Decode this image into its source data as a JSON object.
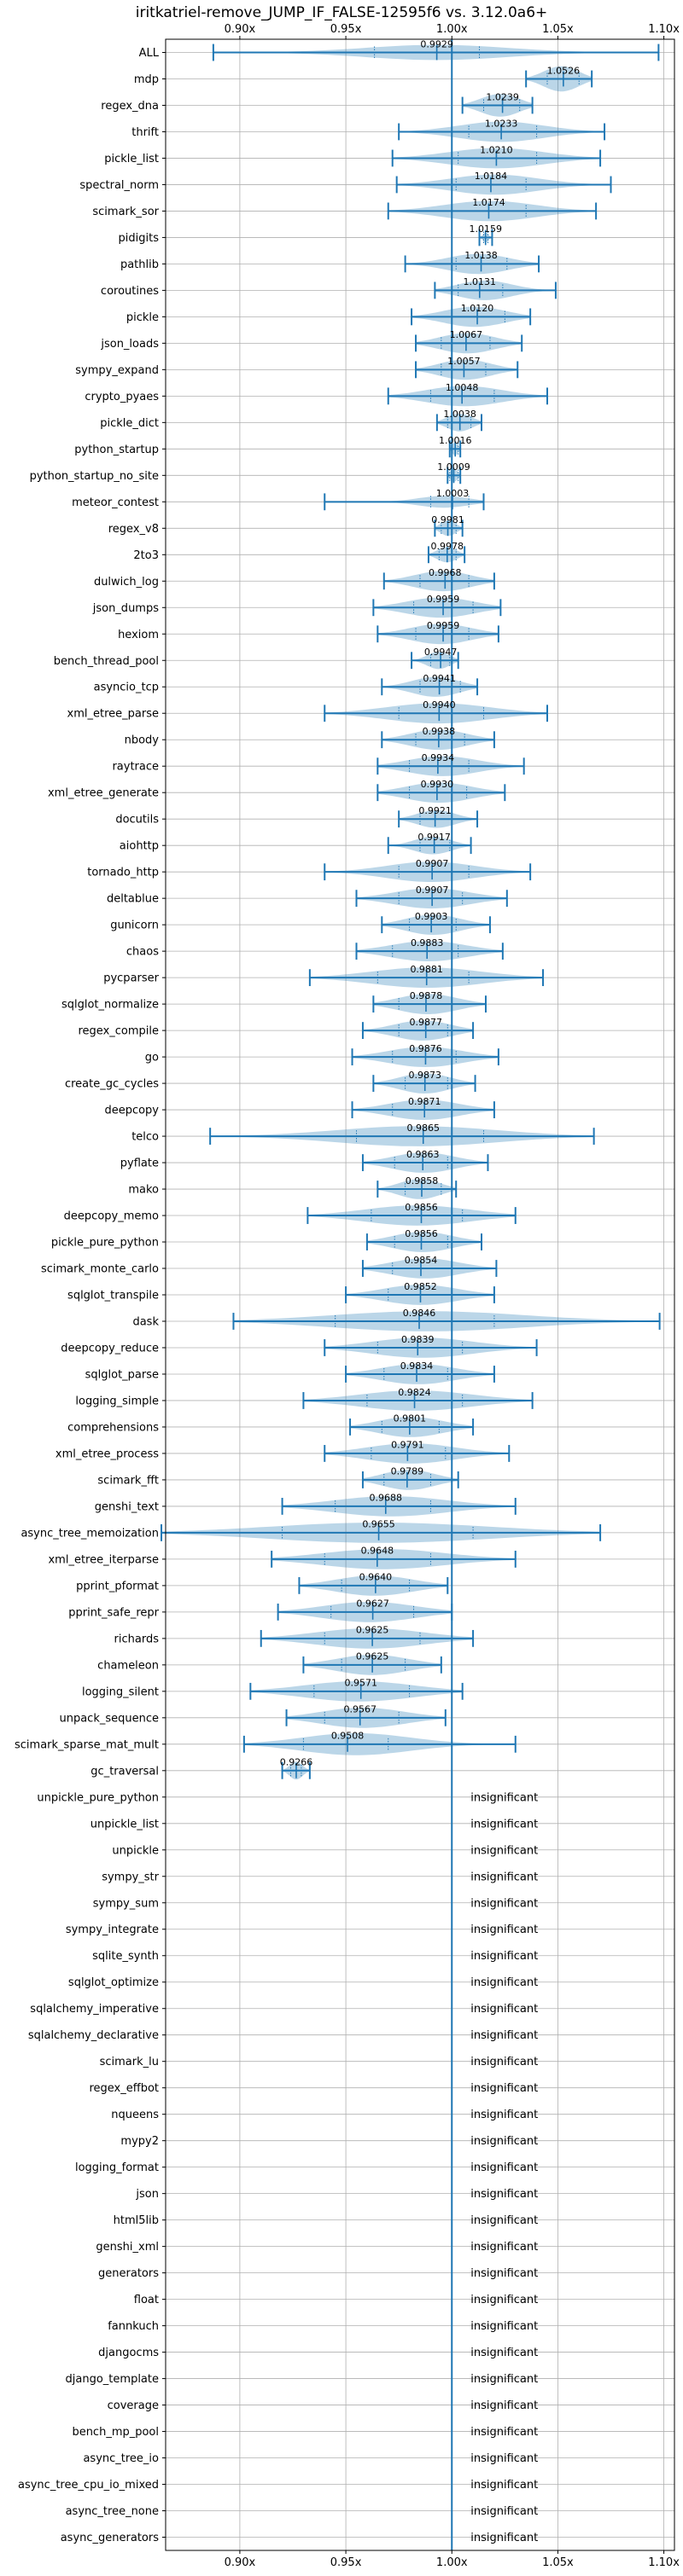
{
  "chart_data": {
    "type": "violin",
    "title": "iritkatriel-remove_JUMP_IF_FALSE-12595f6 vs. 3.12.0a6+",
    "xlim": [
      0.865,
      1.105
    ],
    "xticks": [
      0.9,
      0.95,
      1.0,
      1.05,
      1.1
    ],
    "xtick_labels": [
      "0.90x",
      "0.95x",
      "1.00x",
      "1.05x",
      "1.10x"
    ],
    "reference_line": 1.0,
    "grid": true,
    "colors": {
      "line": "#1f77b4",
      "violin_fill": "#1f77b4",
      "grid": "#b0b0b0",
      "text": "#000000"
    },
    "insignificant_label": "insignificant",
    "benchmarks": [
      {
        "name": "ALL",
        "mean": 0.9929,
        "min": 0.8875,
        "max": 1.0975,
        "q1": 0.9635,
        "q3": 1.013,
        "width": 0.6
      },
      {
        "name": "mdp",
        "mean": 1.0526,
        "min": 1.035,
        "max": 1.066,
        "q1": 1.045,
        "q3": 1.06,
        "width": 1.0
      },
      {
        "name": "regex_dna",
        "mean": 1.0239,
        "min": 1.005,
        "max": 1.038,
        "q1": 1.015,
        "q3": 1.032,
        "width": 0.9
      },
      {
        "name": "thrift",
        "mean": 1.0233,
        "min": 0.975,
        "max": 1.072,
        "q1": 1.008,
        "q3": 1.04,
        "width": 0.8
      },
      {
        "name": "pickle_list",
        "mean": 1.021,
        "min": 0.972,
        "max": 1.07,
        "q1": 1.003,
        "q3": 1.04,
        "width": 0.8
      },
      {
        "name": "spectral_norm",
        "mean": 1.0184,
        "min": 0.974,
        "max": 1.075,
        "q1": 1.002,
        "q3": 1.035,
        "width": 0.8
      },
      {
        "name": "scimark_sor",
        "mean": 1.0174,
        "min": 0.97,
        "max": 1.068,
        "q1": 1.0,
        "q3": 1.035,
        "width": 0.8
      },
      {
        "name": "pidigits",
        "mean": 1.0159,
        "min": 1.013,
        "max": 1.019,
        "q1": 1.015,
        "q3": 1.017,
        "width": 0.4
      },
      {
        "name": "pathlib",
        "mean": 1.0138,
        "min": 0.978,
        "max": 1.041,
        "q1": 1.002,
        "q3": 1.026,
        "width": 0.8
      },
      {
        "name": "coroutines",
        "mean": 1.0131,
        "min": 0.992,
        "max": 1.049,
        "q1": 1.003,
        "q3": 1.024,
        "width": 0.8
      },
      {
        "name": "pickle",
        "mean": 1.012,
        "min": 0.981,
        "max": 1.037,
        "q1": 1.0,
        "q3": 1.025,
        "width": 0.8
      },
      {
        "name": "json_loads",
        "mean": 1.0067,
        "min": 0.983,
        "max": 1.033,
        "q1": 0.995,
        "q3": 1.018,
        "width": 0.8
      },
      {
        "name": "sympy_expand",
        "mean": 1.0057,
        "min": 0.983,
        "max": 1.031,
        "q1": 0.995,
        "q3": 1.016,
        "width": 0.8
      },
      {
        "name": "crypto_pyaes",
        "mean": 1.0048,
        "min": 0.97,
        "max": 1.045,
        "q1": 0.99,
        "q3": 1.02,
        "width": 0.8
      },
      {
        "name": "pickle_dict",
        "mean": 1.0038,
        "min": 0.993,
        "max": 1.014,
        "q1": 0.998,
        "q3": 1.009,
        "width": 0.7
      },
      {
        "name": "python_startup",
        "mean": 1.0016,
        "min": 0.999,
        "max": 1.004,
        "q1": 1.0,
        "q3": 1.003,
        "width": 0.5
      },
      {
        "name": "python_startup_no_site",
        "mean": 1.0009,
        "min": 0.998,
        "max": 1.004,
        "q1": 0.999,
        "q3": 1.003,
        "width": 0.5
      },
      {
        "name": "meteor_contest",
        "mean": 1.0003,
        "min": 0.94,
        "max": 1.015,
        "q1": 0.99,
        "q3": 1.008,
        "width": 0.6
      },
      {
        "name": "regex_v8",
        "mean": 0.9981,
        "min": 0.992,
        "max": 1.005,
        "q1": 0.995,
        "q3": 1.002,
        "width": 0.6
      },
      {
        "name": "2to3",
        "mean": 0.9978,
        "min": 0.989,
        "max": 1.006,
        "q1": 0.994,
        "q3": 1.002,
        "width": 0.6
      },
      {
        "name": "dulwich_log",
        "mean": 0.9968,
        "min": 0.968,
        "max": 1.02,
        "q1": 0.985,
        "q3": 1.008,
        "width": 0.8
      },
      {
        "name": "json_dumps",
        "mean": 0.9959,
        "min": 0.963,
        "max": 1.023,
        "q1": 0.982,
        "q3": 1.01,
        "width": 0.8
      },
      {
        "name": "hexiom",
        "mean": 0.9959,
        "min": 0.965,
        "max": 1.022,
        "q1": 0.983,
        "q3": 1.008,
        "width": 0.8
      },
      {
        "name": "bench_thread_pool",
        "mean": 0.9947,
        "min": 0.981,
        "max": 1.003,
        "q1": 0.99,
        "q3": 0.999,
        "width": 0.7
      },
      {
        "name": "asyncio_tcp",
        "mean": 0.9941,
        "min": 0.967,
        "max": 1.012,
        "q1": 0.985,
        "q3": 1.004,
        "width": 0.8
      },
      {
        "name": "xml_etree_parse",
        "mean": 0.994,
        "min": 0.94,
        "max": 1.045,
        "q1": 0.975,
        "q3": 1.015,
        "width": 0.8
      },
      {
        "name": "nbody",
        "mean": 0.9938,
        "min": 0.967,
        "max": 1.02,
        "q1": 0.983,
        "q3": 1.006,
        "width": 0.8
      },
      {
        "name": "raytrace",
        "mean": 0.9934,
        "min": 0.965,
        "max": 1.034,
        "q1": 0.98,
        "q3": 1.008,
        "width": 0.8
      },
      {
        "name": "xml_etree_generate",
        "mean": 0.993,
        "min": 0.965,
        "max": 1.025,
        "q1": 0.98,
        "q3": 1.007,
        "width": 0.8
      },
      {
        "name": "docutils",
        "mean": 0.9921,
        "min": 0.975,
        "max": 1.012,
        "q1": 0.985,
        "q3": 1.0,
        "width": 0.7
      },
      {
        "name": "aiohttp",
        "mean": 0.9917,
        "min": 0.97,
        "max": 1.009,
        "q1": 0.985,
        "q3": 0.999,
        "width": 0.7
      },
      {
        "name": "tornado_http",
        "mean": 0.9907,
        "min": 0.94,
        "max": 1.037,
        "q1": 0.975,
        "q3": 1.008,
        "width": 0.8
      },
      {
        "name": "deltablue",
        "mean": 0.9907,
        "min": 0.955,
        "max": 1.026,
        "q1": 0.975,
        "q3": 1.005,
        "width": 0.8
      },
      {
        "name": "gunicorn",
        "mean": 0.9903,
        "min": 0.967,
        "max": 1.018,
        "q1": 0.98,
        "q3": 1.002,
        "width": 0.8
      },
      {
        "name": "chaos",
        "mean": 0.9883,
        "min": 0.955,
        "max": 1.024,
        "q1": 0.972,
        "q3": 1.003,
        "width": 0.8
      },
      {
        "name": "pycparser",
        "mean": 0.9881,
        "min": 0.933,
        "max": 1.043,
        "q1": 0.965,
        "q3": 1.008,
        "width": 0.8
      },
      {
        "name": "sqlglot_normalize",
        "mean": 0.9878,
        "min": 0.963,
        "max": 1.016,
        "q1": 0.975,
        "q3": 1.0,
        "width": 0.8
      },
      {
        "name": "regex_compile",
        "mean": 0.9877,
        "min": 0.958,
        "max": 1.01,
        "q1": 0.975,
        "q3": 0.998,
        "width": 0.8
      },
      {
        "name": "go",
        "mean": 0.9876,
        "min": 0.953,
        "max": 1.022,
        "q1": 0.972,
        "q3": 1.002,
        "width": 0.8
      },
      {
        "name": "create_gc_cycles",
        "mean": 0.9873,
        "min": 0.963,
        "max": 1.011,
        "q1": 0.978,
        "q3": 0.998,
        "width": 0.8
      },
      {
        "name": "deepcopy",
        "mean": 0.9871,
        "min": 0.953,
        "max": 1.02,
        "q1": 0.972,
        "q3": 1.0,
        "width": 0.8
      },
      {
        "name": "telco",
        "mean": 0.9865,
        "min": 0.886,
        "max": 1.067,
        "q1": 0.955,
        "q3": 1.015,
        "width": 0.8
      },
      {
        "name": "pyflate",
        "mean": 0.9863,
        "min": 0.958,
        "max": 1.017,
        "q1": 0.973,
        "q3": 0.998,
        "width": 0.8
      },
      {
        "name": "mako",
        "mean": 0.9858,
        "min": 0.965,
        "max": 1.002,
        "q1": 0.978,
        "q3": 0.995,
        "width": 0.8
      },
      {
        "name": "deepcopy_memo",
        "mean": 0.9856,
        "min": 0.932,
        "max": 1.03,
        "q1": 0.962,
        "q3": 1.005,
        "width": 0.8
      },
      {
        "name": "pickle_pure_python",
        "mean": 0.9856,
        "min": 0.96,
        "max": 1.014,
        "q1": 0.973,
        "q3": 0.998,
        "width": 0.8
      },
      {
        "name": "scimark_monte_carlo",
        "mean": 0.9854,
        "min": 0.958,
        "max": 1.021,
        "q1": 0.972,
        "q3": 1.0,
        "width": 0.8
      },
      {
        "name": "sqlglot_transpile",
        "mean": 0.9852,
        "min": 0.95,
        "max": 1.02,
        "q1": 0.97,
        "q3": 1.0,
        "width": 0.8
      },
      {
        "name": "dask",
        "mean": 0.9846,
        "min": 0.897,
        "max": 1.098,
        "q1": 0.945,
        "q3": 1.02,
        "width": 0.8
      },
      {
        "name": "deepcopy_reduce",
        "mean": 0.9839,
        "min": 0.94,
        "max": 1.04,
        "q1": 0.965,
        "q3": 1.005,
        "width": 0.8
      },
      {
        "name": "sqlglot_parse",
        "mean": 0.9834,
        "min": 0.95,
        "max": 1.02,
        "q1": 0.968,
        "q3": 0.998,
        "width": 0.8
      },
      {
        "name": "logging_simple",
        "mean": 0.9824,
        "min": 0.93,
        "max": 1.038,
        "q1": 0.96,
        "q3": 1.005,
        "width": 0.8
      },
      {
        "name": "comprehensions",
        "mean": 0.9801,
        "min": 0.952,
        "max": 1.01,
        "q1": 0.967,
        "q3": 0.994,
        "width": 0.8
      },
      {
        "name": "xml_etree_process",
        "mean": 0.9791,
        "min": 0.94,
        "max": 1.027,
        "q1": 0.962,
        "q3": 0.997,
        "width": 0.8
      },
      {
        "name": "scimark_fft",
        "mean": 0.9789,
        "min": 0.958,
        "max": 1.003,
        "q1": 0.968,
        "q3": 0.99,
        "width": 0.8
      },
      {
        "name": "genshi_text",
        "mean": 0.9688,
        "min": 0.92,
        "max": 1.03,
        "q1": 0.945,
        "q3": 0.99,
        "width": 0.8
      },
      {
        "name": "async_tree_memoization",
        "mean": 0.9655,
        "min": 0.863,
        "max": 1.07,
        "q1": 0.92,
        "q3": 1.01,
        "width": 0.8
      },
      {
        "name": "xml_etree_iterparse",
        "mean": 0.9648,
        "min": 0.915,
        "max": 1.03,
        "q1": 0.94,
        "q3": 0.99,
        "width": 0.8
      },
      {
        "name": "pprint_pformat",
        "mean": 0.964,
        "min": 0.928,
        "max": 0.998,
        "q1": 0.948,
        "q3": 0.98,
        "width": 0.8
      },
      {
        "name": "pprint_safe_repr",
        "mean": 0.9627,
        "min": 0.918,
        "max": 1.0,
        "q1": 0.943,
        "q3": 0.982,
        "width": 0.8
      },
      {
        "name": "richards",
        "mean": 0.9625,
        "min": 0.91,
        "max": 1.01,
        "q1": 0.94,
        "q3": 0.985,
        "width": 0.8
      },
      {
        "name": "chameleon",
        "mean": 0.9625,
        "min": 0.93,
        "max": 0.995,
        "q1": 0.948,
        "q3": 0.978,
        "width": 0.8
      },
      {
        "name": "logging_silent",
        "mean": 0.9571,
        "min": 0.905,
        "max": 1.005,
        "q1": 0.935,
        "q3": 0.98,
        "width": 0.8
      },
      {
        "name": "unpack_sequence",
        "mean": 0.9567,
        "min": 0.922,
        "max": 0.997,
        "q1": 0.94,
        "q3": 0.975,
        "width": 0.8
      },
      {
        "name": "scimark_sparse_mat_mult",
        "mean": 0.9508,
        "min": 0.902,
        "max": 1.03,
        "q1": 0.93,
        "q3": 0.97,
        "width": 0.9
      },
      {
        "name": "gc_traversal",
        "mean": 0.9266,
        "min": 0.92,
        "max": 0.933,
        "q1": 0.924,
        "q3": 0.929,
        "width": 0.7
      },
      {
        "name": "unpickle_pure_python",
        "insignificant": true
      },
      {
        "name": "unpickle_list",
        "insignificant": true
      },
      {
        "name": "unpickle",
        "insignificant": true
      },
      {
        "name": "sympy_str",
        "insignificant": true
      },
      {
        "name": "sympy_sum",
        "insignificant": true
      },
      {
        "name": "sympy_integrate",
        "insignificant": true
      },
      {
        "name": "sqlite_synth",
        "insignificant": true
      },
      {
        "name": "sqlglot_optimize",
        "insignificant": true
      },
      {
        "name": "sqlalchemy_imperative",
        "insignificant": true
      },
      {
        "name": "sqlalchemy_declarative",
        "insignificant": true
      },
      {
        "name": "scimark_lu",
        "insignificant": true
      },
      {
        "name": "regex_effbot",
        "insignificant": true
      },
      {
        "name": "nqueens",
        "insignificant": true
      },
      {
        "name": "mypy2",
        "insignificant": true
      },
      {
        "name": "logging_format",
        "insignificant": true
      },
      {
        "name": "json",
        "insignificant": true
      },
      {
        "name": "html5lib",
        "insignificant": true
      },
      {
        "name": "genshi_xml",
        "insignificant": true
      },
      {
        "name": "generators",
        "insignificant": true
      },
      {
        "name": "float",
        "insignificant": true
      },
      {
        "name": "fannkuch",
        "insignificant": true
      },
      {
        "name": "djangocms",
        "insignificant": true
      },
      {
        "name": "django_template",
        "insignificant": true
      },
      {
        "name": "coverage",
        "insignificant": true
      },
      {
        "name": "bench_mp_pool",
        "insignificant": true
      },
      {
        "name": "async_tree_io",
        "insignificant": true
      },
      {
        "name": "async_tree_cpu_io_mixed",
        "insignificant": true
      },
      {
        "name": "async_tree_none",
        "insignificant": true
      },
      {
        "name": "async_generators",
        "insignificant": true
      }
    ]
  }
}
